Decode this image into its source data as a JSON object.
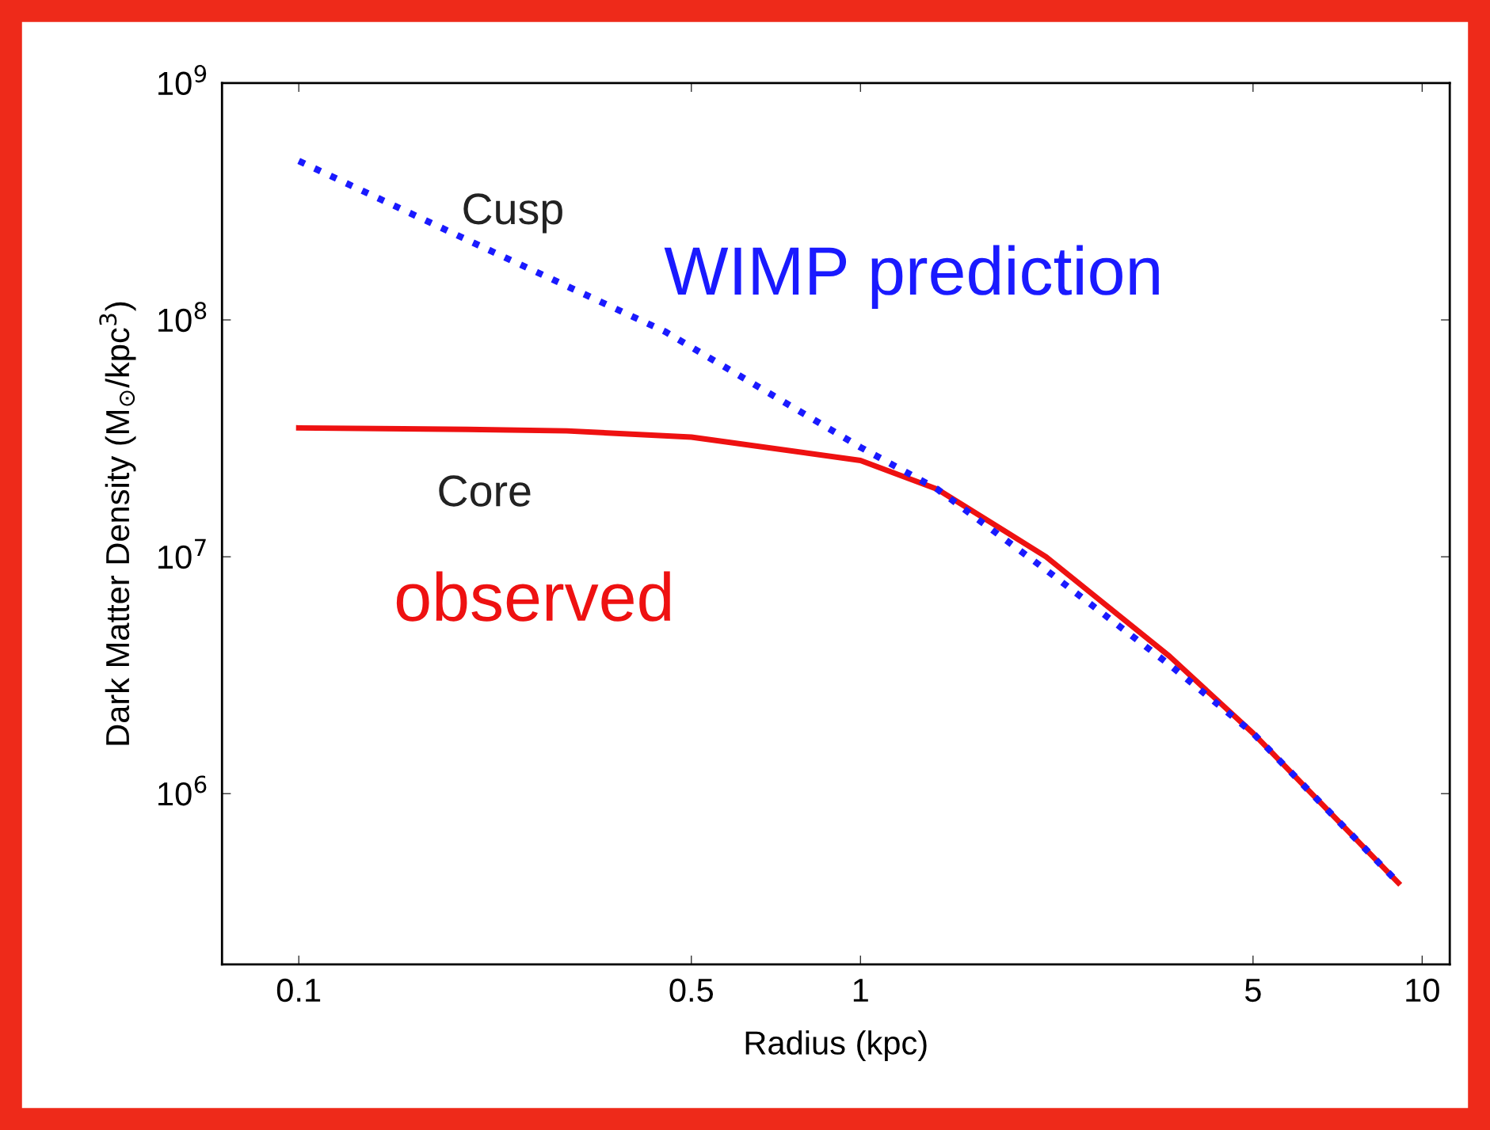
{
  "chart_data": {
    "type": "line",
    "xlabel": "Radius (kpc)",
    "ylabel": "Dark Matter Density (M$_{⊙}$/kpc$^{3}$)",
    "log": "xy",
    "xlim": [
      0.073,
      11.2
    ],
    "ylim": [
      190000,
      1000000000
    ],
    "xticks": [
      0.1,
      0.5,
      1,
      5,
      10
    ],
    "yticks": [
      {
        "value": 1000000,
        "label": "10$^{6}$"
      },
      {
        "value": 10000000,
        "label": "10$^{7}$"
      },
      {
        "value": 100000000,
        "label": "10$^{8}$"
      },
      {
        "value": 1000000000,
        "label": "10$^{9}$"
      }
    ],
    "series": [
      {
        "name": "WIMP prediction",
        "color": "#1a1aff",
        "line_style": "dotted",
        "x": [
          0.1,
          0.2,
          0.45,
          1,
          1.37,
          2.14,
          3.55,
          5,
          9.07
        ],
        "values": [
          469000000,
          217000000,
          89000000,
          29000000,
          19300000,
          8800000,
          3500000,
          1800000,
          420000
        ]
      },
      {
        "name": "observed",
        "color": "#ee1111",
        "line_style": "solid",
        "x": [
          0.1,
          0.2,
          0.3,
          0.5,
          1,
          1.37,
          2.14,
          3.55,
          5,
          9.07
        ],
        "values": [
          35000000,
          34500000,
          34000000,
          32000000,
          25500000,
          19300000,
          10000000,
          3800000,
          1800000,
          420000
        ]
      }
    ],
    "annotations": [
      "Cusp",
      "Core"
    ],
    "legend": false,
    "grid": false
  }
}
